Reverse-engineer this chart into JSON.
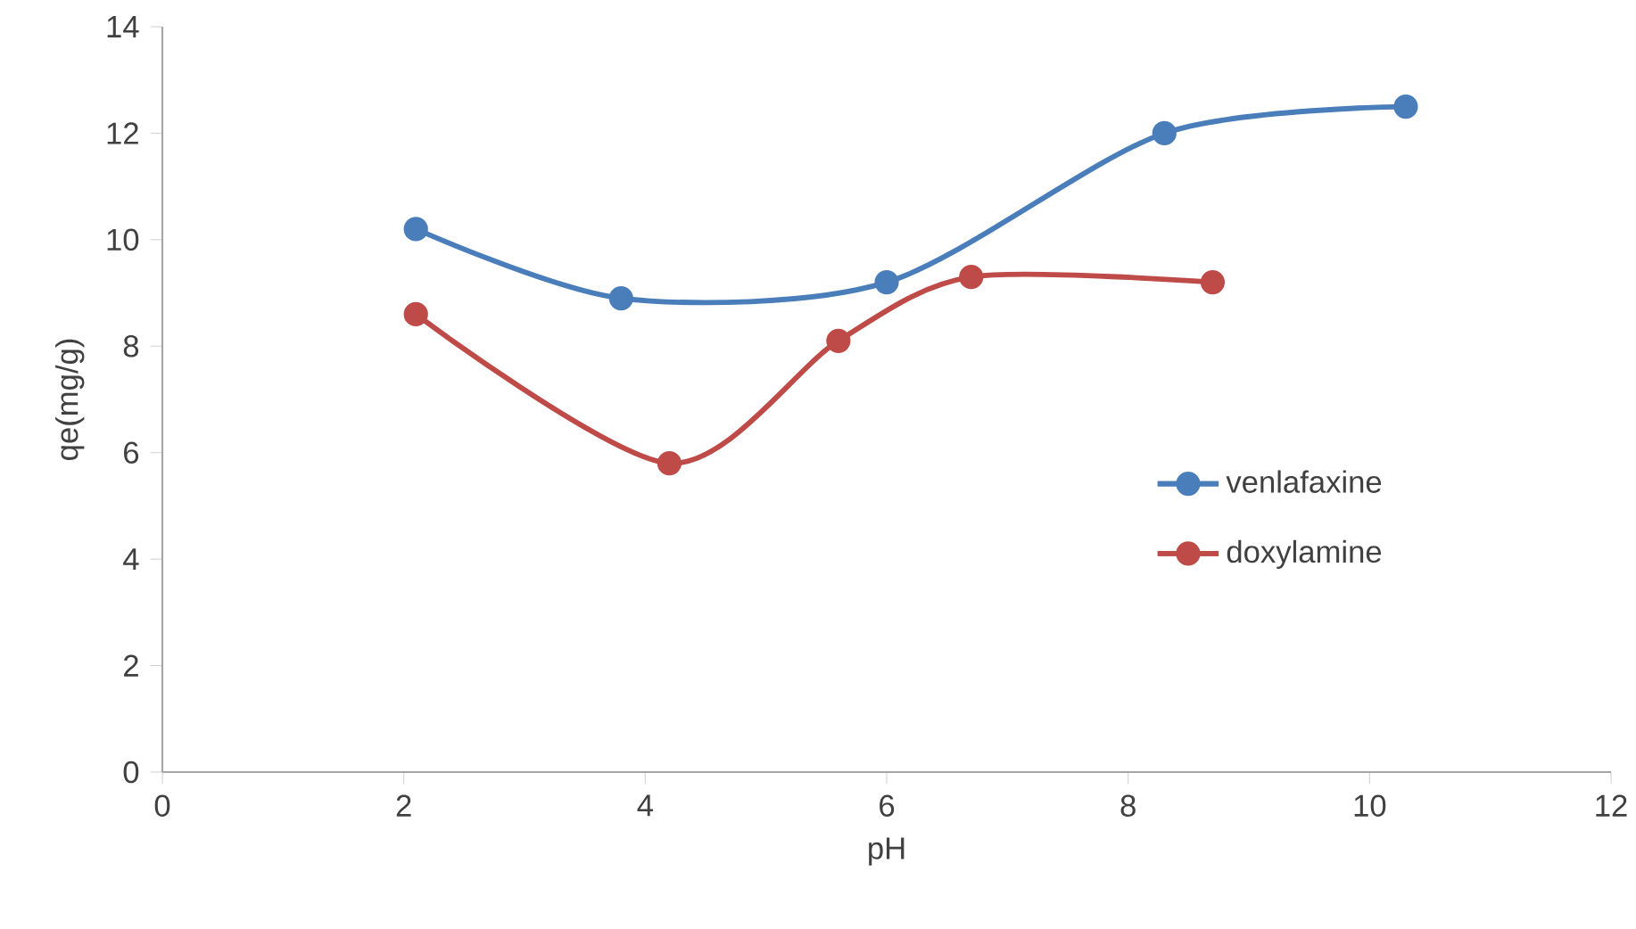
{
  "chart_data": {
    "type": "line",
    "xlabel": "pH",
    "ylabel": "qe(mg/g)",
    "xlim": [
      0,
      12
    ],
    "xticks": [
      0,
      2,
      4,
      6,
      8,
      10,
      12
    ],
    "ylim": [
      0,
      14
    ],
    "yticks": [
      0,
      2,
      4,
      6,
      8,
      10,
      12,
      14
    ],
    "grid": false,
    "legend": "right",
    "marker": "circle",
    "line_style": "solid",
    "series": [
      {
        "name": "venlafaxine",
        "color": "#4a7ebb",
        "x": [
          2.1,
          3.8,
          6.0,
          8.3,
          10.3
        ],
        "values": [
          10.2,
          8.9,
          9.2,
          12.0,
          12.5
        ]
      },
      {
        "name": "doxylamine",
        "color": "#be4b48",
        "x": [
          2.1,
          4.2,
          5.6,
          6.7,
          8.7
        ],
        "values": [
          8.6,
          5.8,
          8.1,
          9.3,
          9.2
        ]
      }
    ]
  }
}
